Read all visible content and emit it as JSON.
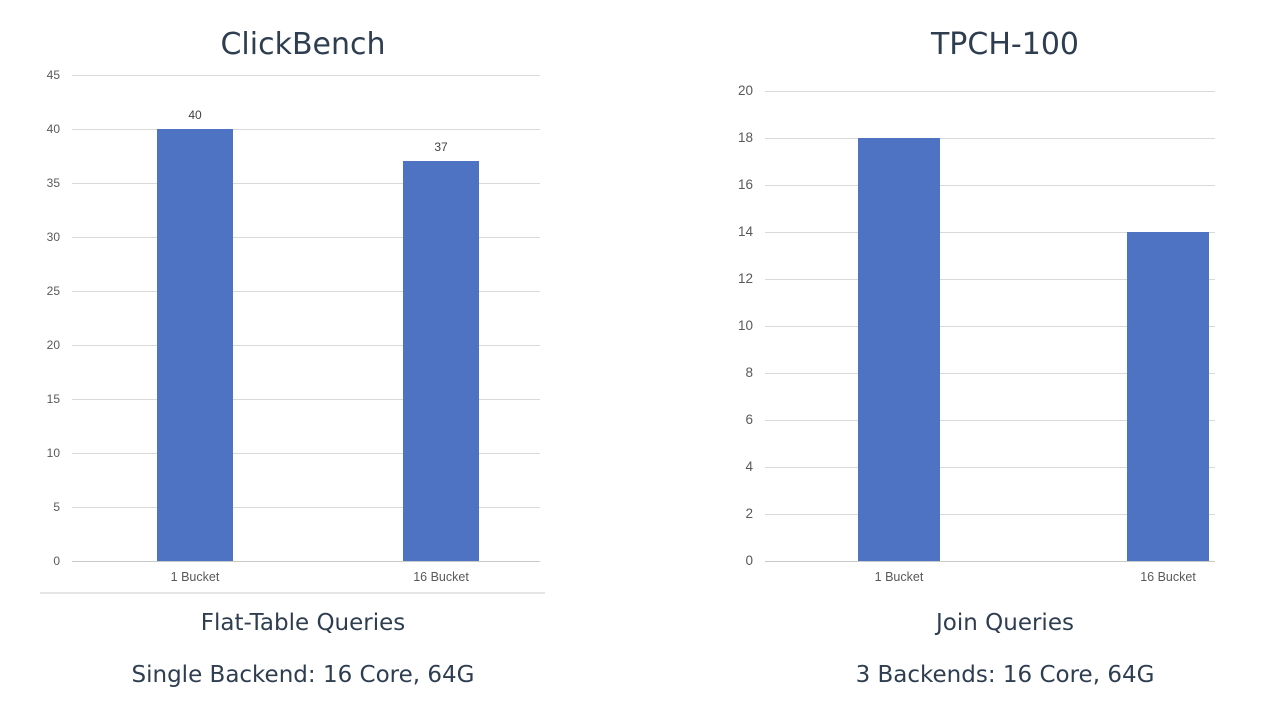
{
  "chart_data": [
    {
      "type": "bar",
      "title": "ClickBench",
      "categories": [
        "1 Bucket",
        "16 Bucket"
      ],
      "values": [
        40,
        37
      ],
      "value_labels": [
        "40",
        "37"
      ],
      "show_value_labels": true,
      "y_ticks": [
        0,
        5,
        10,
        15,
        20,
        25,
        30,
        35,
        40,
        45
      ],
      "ylim": [
        0,
        45
      ],
      "grid": true,
      "legend": false,
      "xlabel": "",
      "ylabel": "",
      "caption": "Flat-Table Queries",
      "subcaption": "Single Backend: 16 Core, 64G"
    },
    {
      "type": "bar",
      "title": "TPCH-100",
      "categories": [
        "1 Bucket",
        "16 Bucket"
      ],
      "values": [
        18,
        14
      ],
      "value_labels": [],
      "show_value_labels": false,
      "y_ticks": [
        0,
        2,
        4,
        6,
        8,
        10,
        12,
        14,
        16,
        18,
        20
      ],
      "ylim": [
        0,
        20
      ],
      "grid": true,
      "legend": false,
      "xlabel": "",
      "ylabel": "",
      "caption": "Join Queries",
      "subcaption": "3 Backends: 16 Core, 64G"
    }
  ],
  "colors": {
    "background": "#FFFFFF",
    "bar": "#4E73C2",
    "heading": "#2E3E50",
    "tick_label": "#595959",
    "gridline": "#D9D9D9",
    "baseline": "#C9C9C9",
    "value_label": "#404040",
    "divider": "#E6E6E6"
  }
}
